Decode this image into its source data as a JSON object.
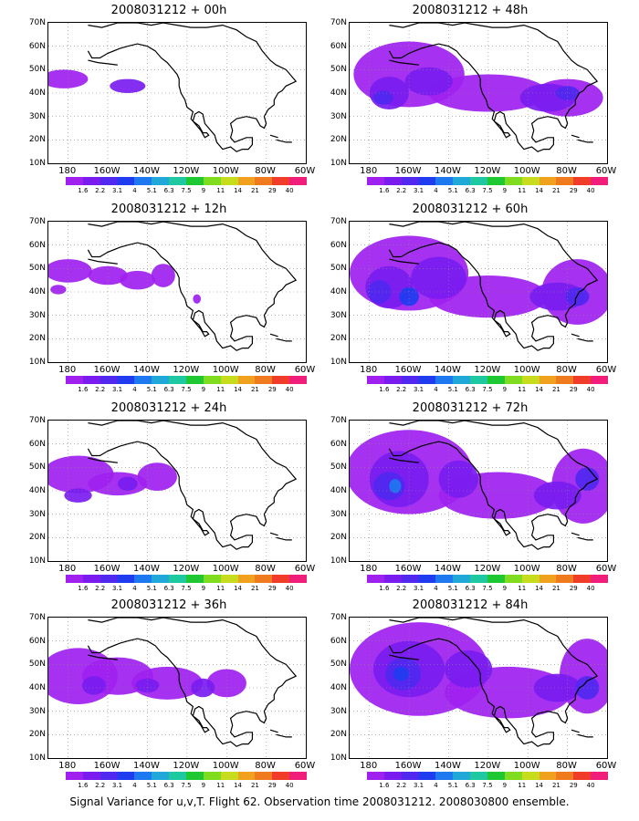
{
  "panels": [
    {
      "title": "2008031212 + 00h",
      "level": 0
    },
    {
      "title": "2008031212 + 12h",
      "level": 1
    },
    {
      "title": "2008031212 + 24h",
      "level": 2
    },
    {
      "title": "2008031212 + 36h",
      "level": 3
    },
    {
      "title": "2008031212 + 48h",
      "level": 4
    },
    {
      "title": "2008031212 + 60h",
      "level": 5
    },
    {
      "title": "2008031212 + 72h",
      "level": 6
    },
    {
      "title": "2008031212 + 84h",
      "level": 7
    }
  ],
  "lat_labels": [
    "70N",
    "60N",
    "50N",
    "40N",
    "30N",
    "20N",
    "10N"
  ],
  "lon_labels": [
    "180",
    "160W",
    "140W",
    "120W",
    "100W",
    "80W",
    "60W"
  ],
  "colorbar": {
    "levels": [
      "1.6",
      "2.2",
      "3.1",
      "4",
      "5.1",
      "6.3",
      "7.5",
      "9",
      "11",
      "14",
      "21",
      "29",
      "40"
    ],
    "colors": [
      "#a020f0",
      "#7a1cf0",
      "#5028f0",
      "#1f3cf0",
      "#1e78f0",
      "#20a8d8",
      "#1ec8a0",
      "#1ec832",
      "#7fdc1e",
      "#c8dc1e",
      "#f0a21e",
      "#f07a1e",
      "#f03c28",
      "#f01e7a"
    ]
  },
  "caption": "Signal Variance for u,v,T. Flight 62. Observation time 2008031212. 2008030800 ensemble."
}
